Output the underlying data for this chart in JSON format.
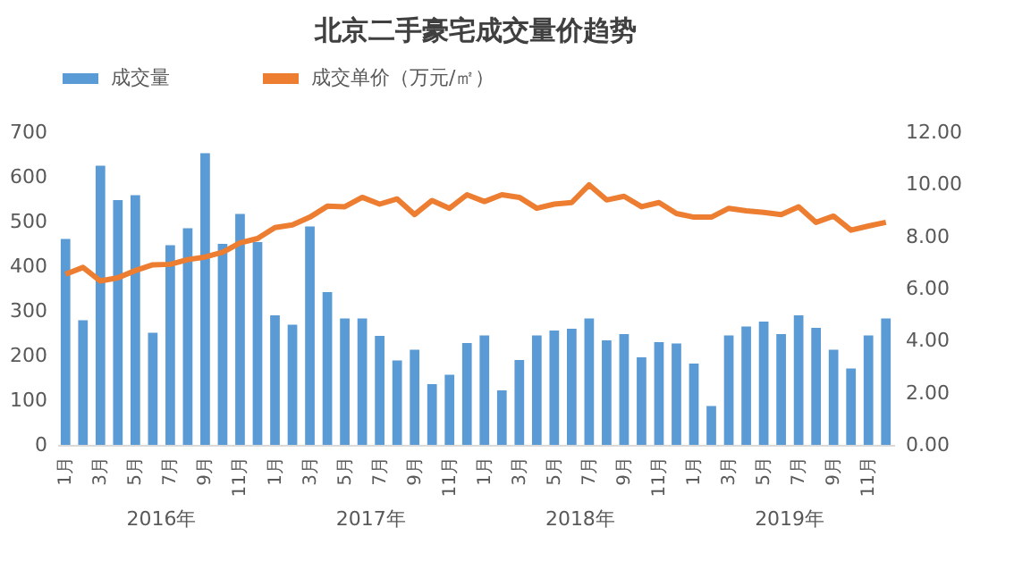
{
  "chart_data": {
    "type": "bar",
    "title": "北京二手豪宅成交量价趋势",
    "categories": [
      "1月",
      null,
      "3月",
      null,
      "5月",
      null,
      "7月",
      null,
      "9月",
      null,
      "11月",
      null,
      "1月",
      null,
      "3月",
      null,
      "5月",
      null,
      "7月",
      null,
      "9月",
      null,
      "11月",
      null,
      "1月",
      null,
      "3月",
      null,
      "5月",
      null,
      "7月",
      null,
      "9月",
      null,
      "11月",
      null,
      "1月",
      null,
      "3月",
      null,
      "5月",
      null,
      "7月",
      null,
      "9月",
      null,
      "11月",
      null
    ],
    "annotations": [
      "2016年",
      "2017年",
      "2018年",
      "2019年"
    ],
    "series": [
      {
        "name": "成交量",
        "color": "#5b9bd5",
        "values": [
          461,
          279,
          625,
          548,
          559,
          251,
          447,
          485,
          653,
          450,
          517,
          454,
          290,
          269,
          489,
          342,
          283,
          283,
          244,
          189,
          213,
          136,
          157,
          228,
          245,
          122,
          190,
          245,
          256,
          260,
          283,
          234,
          248,
          196,
          230,
          227,
          182,
          87,
          245,
          265,
          276,
          248,
          290,
          262,
          213,
          171,
          245,
          283
        ]
      },
      {
        "name": "成交单价（万元/㎡）",
        "type": "line",
        "axis": "y2",
        "color": "#ed7d31",
        "values": [
          6.55,
          6.81,
          6.29,
          6.41,
          6.69,
          6.91,
          6.93,
          7.11,
          7.21,
          7.39,
          7.75,
          7.92,
          8.34,
          8.44,
          8.74,
          9.16,
          9.14,
          9.5,
          9.24,
          9.44,
          8.84,
          9.38,
          9.08,
          9.6,
          9.34,
          9.6,
          9.5,
          9.08,
          9.24,
          9.3,
          9.98,
          9.4,
          9.54,
          9.14,
          9.3,
          8.88,
          8.74,
          8.74,
          9.08,
          8.98,
          8.92,
          8.84,
          9.14,
          8.54,
          8.78,
          8.24,
          8.4,
          8.54
        ]
      }
    ],
    "ylim": [
      0,
      700
    ],
    "yticks": [
      0,
      100,
      200,
      300,
      400,
      500,
      600,
      700
    ],
    "y2lim": [
      0,
      12
    ],
    "y2ticks": [
      {
        "value": 0,
        "label": "0.00"
      },
      {
        "value": 2,
        "label": "2.00"
      },
      {
        "value": 4,
        "label": "4.00"
      },
      {
        "value": 6,
        "label": "6.00"
      },
      {
        "value": 8,
        "label": "8.00"
      },
      {
        "value": 10,
        "label": "10.00"
      },
      {
        "value": 12,
        "label": "12.00"
      }
    ],
    "grid": false,
    "legend": "top",
    "marker": "none"
  }
}
